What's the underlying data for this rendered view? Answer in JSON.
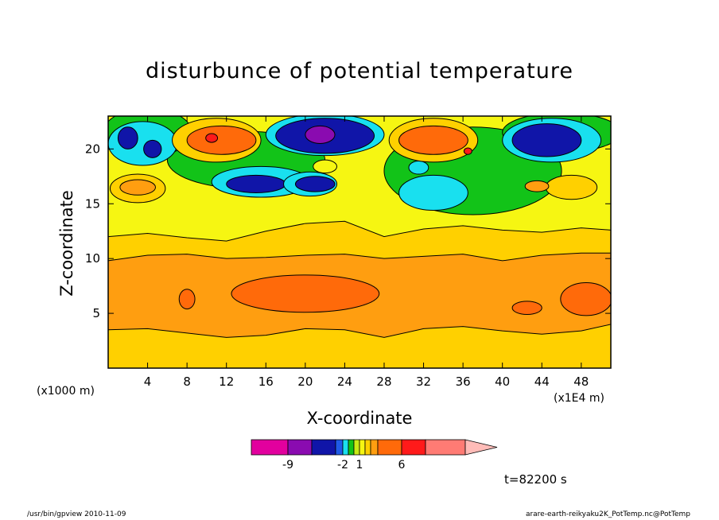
{
  "chart_data": {
    "type": "heatmap",
    "title": "disturbunce of potential temperature",
    "xlabel": "X-coordinate",
    "ylabel": "Z-coordinate",
    "x_unit_left": "(x1000 m)",
    "x_unit_right": "(x1E4 m)",
    "xlim": [
      0,
      51
    ],
    "ylim": [
      0,
      23
    ],
    "xticks": [
      4,
      8,
      12,
      16,
      20,
      24,
      28,
      32,
      36,
      40,
      44,
      48
    ],
    "yticks": [
      5,
      10,
      15,
      20
    ],
    "grid": false,
    "colorbar": {
      "levels": [
        -12,
        -9,
        -6,
        -3,
        -2,
        -1,
        0,
        1,
        2,
        3,
        4,
        6,
        8,
        12,
        15
      ],
      "tick_labels": [
        "-9",
        "-2",
        "1",
        "6"
      ],
      "tick_values": [
        -9,
        -2,
        1,
        6
      ],
      "colors": [
        "#e2009e",
        "#8a0bb0",
        "#1015a8",
        "#1f5be8",
        "#19e0ef",
        "#12c318",
        "#c8ea16",
        "#f6f612",
        "#ffd000",
        "#ff9e10",
        "#ff6a0a",
        "#ff1a1a",
        "#ff7b74",
        "#ffbcb8"
      ]
    },
    "bands": [
      {
        "name": "lower",
        "fill": "#ffd000",
        "z_top": [
          3.5,
          3.6,
          3.2,
          2.8,
          3.0,
          3.6,
          3.5,
          2.8,
          3.6,
          3.8,
          3.4,
          3.1,
          3.4,
          4.0
        ]
      },
      {
        "name": "main",
        "fill": "#ff9e10",
        "z_top": [
          9.8,
          10.3,
          10.4,
          10.0,
          10.1,
          10.3,
          10.4,
          10.0,
          10.2,
          10.4,
          9.8,
          10.3,
          10.5,
          10.5
        ]
      },
      {
        "name": "transition",
        "fill": "#ffd000",
        "z_top": [
          12.0,
          12.3,
          11.9,
          11.6,
          12.5,
          13.2,
          13.4,
          12.0,
          12.7,
          13.0,
          12.6,
          12.4,
          12.8,
          12.6
        ]
      }
    ],
    "band_x": [
      0,
      4,
      8,
      12,
      16,
      20,
      24,
      28,
      32,
      36,
      40,
      44,
      48,
      51
    ],
    "blobs": [
      {
        "x": 20,
        "z": 6.8,
        "rx": 7.5,
        "rz": 1.7,
        "fill": "#ff6a0a"
      },
      {
        "x": 8,
        "z": 6.3,
        "rx": 0.8,
        "rz": 0.9,
        "fill": "#ff6a0a"
      },
      {
        "x": 42.5,
        "z": 5.5,
        "rx": 1.5,
        "rz": 0.6,
        "fill": "#ff6a0a"
      },
      {
        "x": 48.5,
        "z": 6.3,
        "rx": 2.6,
        "rz": 1.5,
        "fill": "#ff6a0a"
      },
      {
        "x": 14,
        "z": 19,
        "rx": 8,
        "rz": 2.6,
        "fill": "#12c318"
      },
      {
        "x": 37,
        "z": 18,
        "rx": 9,
        "rz": 4,
        "fill": "#12c318"
      },
      {
        "x": 4,
        "z": 21.5,
        "rx": 4.5,
        "rz": 2.2,
        "fill": "#12c318"
      },
      {
        "x": 46,
        "z": 21.5,
        "rx": 6,
        "rz": 1.8,
        "fill": "#12c318"
      },
      {
        "x": 3,
        "z": 16.4,
        "rx": 2.8,
        "rz": 1.3,
        "fill": "#ffd000"
      },
      {
        "x": 3,
        "z": 16.5,
        "rx": 1.8,
        "rz": 0.7,
        "fill": "#ff9e10"
      },
      {
        "x": 47,
        "z": 16.5,
        "rx": 2.6,
        "rz": 1.1,
        "fill": "#ffd000"
      },
      {
        "x": 3.5,
        "z": 20.5,
        "rx": 3.5,
        "rz": 2.0,
        "fill": "#19e0ef"
      },
      {
        "x": 2,
        "z": 21,
        "rx": 1,
        "rz": 1.0,
        "fill": "#1015a8"
      },
      {
        "x": 4.5,
        "z": 20,
        "rx": 0.9,
        "rz": 0.8,
        "fill": "#1015a8"
      },
      {
        "x": 15.5,
        "z": 17,
        "rx": 5,
        "rz": 1.4,
        "fill": "#19e0ef"
      },
      {
        "x": 15,
        "z": 16.8,
        "rx": 3.0,
        "rz": 0.8,
        "fill": "#1015a8"
      },
      {
        "x": 20.5,
        "z": 16.8,
        "rx": 2.7,
        "rz": 1.1,
        "fill": "#19e0ef"
      },
      {
        "x": 21,
        "z": 16.8,
        "rx": 2.0,
        "rz": 0.7,
        "fill": "#1015a8"
      },
      {
        "x": 33,
        "z": 16,
        "rx": 3.5,
        "rz": 1.6,
        "fill": "#19e0ef"
      },
      {
        "x": 31.5,
        "z": 18.3,
        "rx": 1.0,
        "rz": 0.6,
        "fill": "#19e0ef"
      },
      {
        "x": 22,
        "z": 21.3,
        "rx": 6,
        "rz": 1.9,
        "fill": "#19e0ef"
      },
      {
        "x": 22,
        "z": 21.2,
        "rx": 5,
        "rz": 1.6,
        "fill": "#1015a8"
      },
      {
        "x": 21.5,
        "z": 21.3,
        "rx": 1.5,
        "rz": 0.8,
        "fill": "#8a0bb0"
      },
      {
        "x": 22,
        "z": 18.4,
        "rx": 1.2,
        "rz": 0.6,
        "fill": "#f6f612"
      },
      {
        "x": 45,
        "z": 20.8,
        "rx": 5,
        "rz": 2.0,
        "fill": "#19e0ef"
      },
      {
        "x": 44.5,
        "z": 20.8,
        "rx": 3.5,
        "rz": 1.5,
        "fill": "#1015a8"
      },
      {
        "x": 11,
        "z": 20.8,
        "rx": 4.5,
        "rz": 2.0,
        "fill": "#ffd000"
      },
      {
        "x": 11.5,
        "z": 20.8,
        "rx": 3.5,
        "rz": 1.3,
        "fill": "#ff6a0a"
      },
      {
        "x": 10.5,
        "z": 21,
        "rx": 0.6,
        "rz": 0.4,
        "fill": "#ff1a1a"
      },
      {
        "x": 33,
        "z": 20.8,
        "rx": 4.5,
        "rz": 2.0,
        "fill": "#ffd000"
      },
      {
        "x": 33,
        "z": 20.8,
        "rx": 3.5,
        "rz": 1.3,
        "fill": "#ff6a0a"
      },
      {
        "x": 36.5,
        "z": 19.8,
        "rx": 0.4,
        "rz": 0.3,
        "fill": "#ff1a1a"
      },
      {
        "x": 43.5,
        "z": 16.6,
        "rx": 1.2,
        "rz": 0.5,
        "fill": "#ff9e10"
      }
    ]
  },
  "timestamp": "t=82200 s",
  "footer_left": "/usr/bin/gpview   2010-11-09",
  "footer_right": "arare-earth-reikyaku2K_PotTemp.nc@PotTemp"
}
